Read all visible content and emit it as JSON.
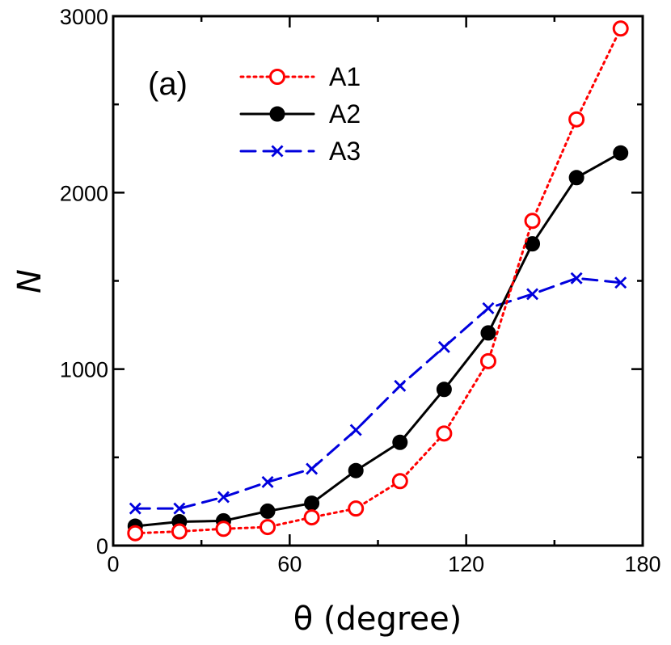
{
  "chart_data": {
    "type": "line",
    "panel_label": "(a)",
    "xlabel": "θ (degree)",
    "ylabel": "N",
    "xlim": [
      0,
      180
    ],
    "ylim": [
      0,
      3000
    ],
    "xticks": [
      0,
      60,
      120,
      180
    ],
    "yticks": [
      0,
      1000,
      2000,
      3000
    ],
    "x_minor_step": 30,
    "y_minor_step": 500,
    "grid": false,
    "legend_position": "top-left",
    "x": [
      7.5,
      22.5,
      37.5,
      52.5,
      67.5,
      82.5,
      97.5,
      112.5,
      127.5,
      142.5,
      157.5,
      172.5
    ],
    "series": [
      {
        "name": "A1",
        "color": "#ff0000",
        "line": "dotted",
        "marker": "open-circle",
        "values": [
          70,
          80,
          95,
          105,
          160,
          210,
          365,
          635,
          1045,
          1840,
          2415,
          2930
        ]
      },
      {
        "name": "A2",
        "color": "#000000",
        "line": "solid",
        "marker": "filled-circle",
        "values": [
          110,
          135,
          140,
          195,
          240,
          425,
          585,
          885,
          1205,
          1710,
          2085,
          2225
        ]
      },
      {
        "name": "A3",
        "color": "#0000dd",
        "line": "dashed",
        "marker": "x",
        "values": [
          210,
          210,
          275,
          360,
          435,
          655,
          905,
          1125,
          1345,
          1425,
          1515,
          1490
        ]
      }
    ]
  }
}
